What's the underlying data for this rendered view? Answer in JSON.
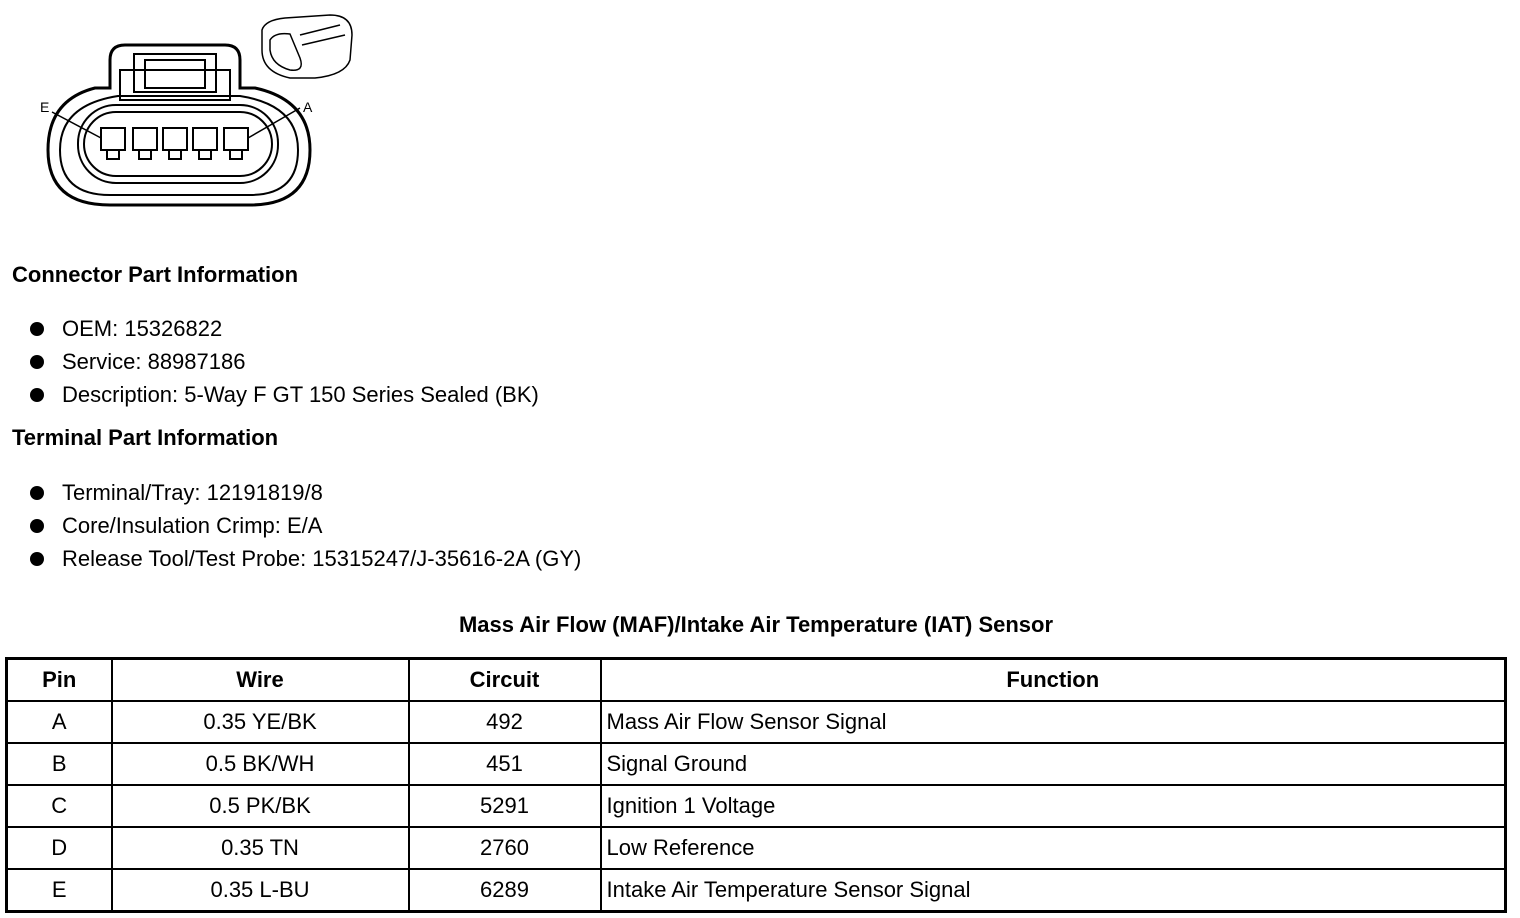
{
  "diagram": {
    "label_left": "E",
    "label_right": "A"
  },
  "connector_info": {
    "heading": "Connector Part Information",
    "items": [
      "OEM: 15326822",
      "Service: 88987186",
      "Description: 5-Way F GT 150 Series Sealed (BK)"
    ]
  },
  "terminal_info": {
    "heading": "Terminal Part Information",
    "items": [
      "Terminal/Tray: 12191819/8",
      "Core/Insulation Crimp: E/A",
      "Release Tool/Test Probe: 15315247/J-35616-2A (GY)"
    ]
  },
  "table": {
    "title": "Mass Air Flow (MAF)/Intake Air Temperature (IAT) Sensor",
    "headers": [
      "Pin",
      "Wire",
      "Circuit",
      "Function"
    ],
    "rows": [
      [
        "A",
        "0.35 YE/BK",
        "492",
        "Mass Air Flow Sensor Signal"
      ],
      [
        "B",
        "0.5 BK/WH",
        "451",
        "Signal Ground"
      ],
      [
        "C",
        "0.5 PK/BK",
        "5291",
        "Ignition 1 Voltage"
      ],
      [
        "D",
        "0.35 TN",
        "2760",
        "Low Reference"
      ],
      [
        "E",
        "0.35 L-BU",
        "6289",
        "Intake Air Temperature Sensor Signal"
      ]
    ]
  }
}
